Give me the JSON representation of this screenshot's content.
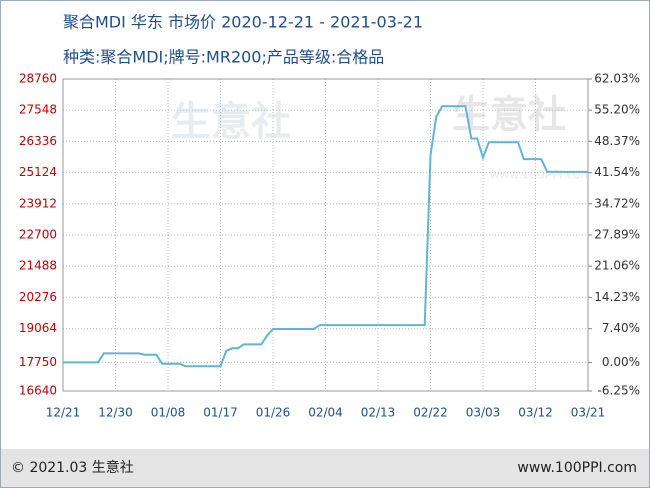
{
  "chart_data": {
    "type": "line",
    "title": "聚合MDI 华东 市场价 2020-12-21 - 2021-03-21",
    "subtitle": "种类:聚合MDI;牌号:MR200;产品等级:合格品",
    "watermark": "生意社",
    "watermark_url": "www.100PPI.com",
    "footer_left": "© 2021.03 生意社",
    "footer_right": "www.100PPI.com",
    "categories": [
      "12/21",
      null,
      null,
      null,
      null,
      null,
      null,
      null,
      null,
      "12/30",
      null,
      null,
      null,
      null,
      null,
      null,
      null,
      null,
      "01/08",
      null,
      null,
      null,
      null,
      null,
      null,
      null,
      null,
      "01/17",
      null,
      null,
      null,
      null,
      null,
      null,
      null,
      null,
      "01/26",
      null,
      null,
      null,
      null,
      null,
      null,
      null,
      null,
      "02/04",
      null,
      null,
      null,
      null,
      null,
      null,
      null,
      null,
      "02/13",
      null,
      null,
      null,
      null,
      null,
      null,
      null,
      null,
      "02/22",
      null,
      null,
      null,
      null,
      null,
      null,
      null,
      null,
      "03/03",
      null,
      null,
      null,
      null,
      null,
      null,
      null,
      null,
      "03/12",
      null,
      null,
      null,
      null,
      null,
      null,
      null,
      null,
      "03/21"
    ],
    "series": [
      {
        "color": "#5fb4dc",
        "values": [
          17750,
          17750,
          17750,
          17750,
          17750,
          17750,
          17750,
          18100,
          18100,
          18100,
          18100,
          18100,
          18100,
          18100,
          18050,
          18050,
          18050,
          17700,
          17700,
          17700,
          17700,
          17600,
          17600,
          17600,
          17600,
          17600,
          17600,
          17600,
          18200,
          18300,
          18300,
          18450,
          18450,
          18450,
          18450,
          18800,
          19050,
          19050,
          19050,
          19050,
          19050,
          19050,
          19050,
          19050,
          19200,
          19200,
          19200,
          19200,
          19200,
          19200,
          19200,
          19200,
          19200,
          19200,
          19200,
          19200,
          19200,
          19200,
          19200,
          19200,
          19200,
          19200,
          19200,
          25800,
          27300,
          27700,
          27700,
          27700,
          27700,
          27700,
          26450,
          26450,
          25700,
          26300,
          26300,
          26300,
          26300,
          26300,
          26300,
          25650,
          25650,
          25650,
          25650,
          25150,
          25150,
          25150,
          25150,
          25150,
          25150,
          25150,
          25150
        ]
      }
    ],
    "ylim": [
      16640,
      28760
    ],
    "yticks": [
      16640,
      17750,
      19064,
      20276,
      21488,
      22700,
      23912,
      25124,
      26336,
      27548,
      28760
    ],
    "y2lim": [
      -6.25,
      62.03
    ],
    "y2ticks": [
      {
        "value": -6.25,
        "label": "-6.25%"
      },
      {
        "value": 0,
        "label": "0.00%"
      },
      {
        "value": 7.4,
        "label": "7.40%"
      },
      {
        "value": 14.23,
        "label": "14.23%"
      },
      {
        "value": 21.06,
        "label": "21.06%"
      },
      {
        "value": 27.89,
        "label": "27.89%"
      },
      {
        "value": 34.72,
        "label": "34.72%"
      },
      {
        "value": 41.54,
        "label": "41.54%"
      },
      {
        "value": 48.37,
        "label": "48.37%"
      },
      {
        "value": 55.2,
        "label": "55.20%"
      },
      {
        "value": 62.03,
        "label": "62.03%"
      }
    ],
    "grid": true
  }
}
